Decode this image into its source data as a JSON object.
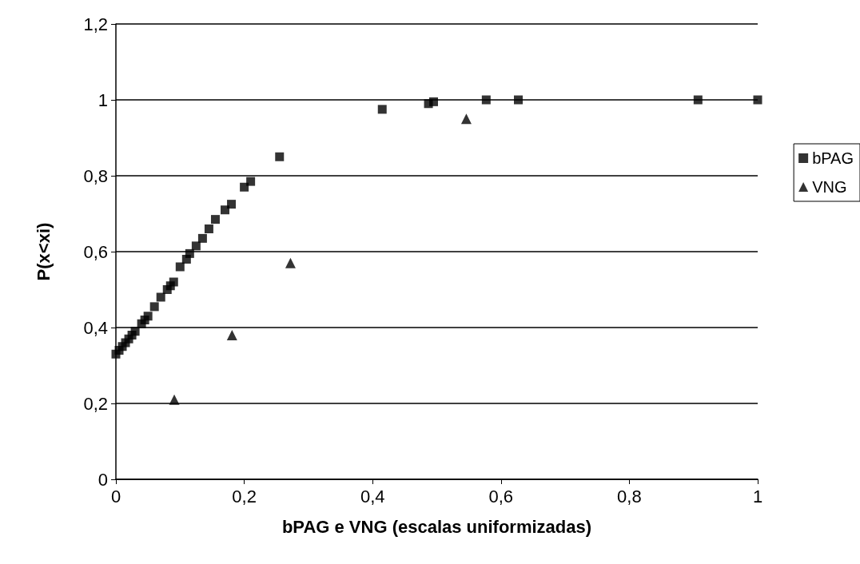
{
  "chart_data": {
    "type": "scatter",
    "xlabel": "bPAG e VNG (escalas uniformizadas)",
    "ylabel": "P(x<xi)",
    "series": [
      {
        "name": "bPAG",
        "color": "#000000",
        "marker": "square",
        "x": [
          0,
          0.005,
          0.01,
          0.015,
          0.02,
          0.025,
          0.03,
          0.04,
          0.045,
          0.05,
          0.06,
          0.07,
          0.08,
          0.085,
          0.09,
          0.1,
          0.11,
          0.115,
          0.125,
          0.135,
          0.145,
          0.155,
          0.17,
          0.18,
          0.2,
          0.21,
          0.255,
          0.415,
          0.487,
          0.495,
          0.577,
          0.627,
          0.907,
          1.0
        ],
        "values": [
          0.33,
          0.34,
          0.35,
          0.36,
          0.37,
          0.38,
          0.39,
          0.41,
          0.42,
          0.43,
          0.455,
          0.48,
          0.5,
          0.51,
          0.52,
          0.56,
          0.58,
          0.595,
          0.615,
          0.635,
          0.66,
          0.685,
          0.71,
          0.725,
          0.77,
          0.785,
          0.85,
          0.975,
          0.99,
          0.995,
          1,
          1,
          1,
          1
        ]
      },
      {
        "name": "VNG",
        "color": "#000000",
        "marker": "triangle",
        "x": [
          0.091,
          0.181,
          0.272,
          0.546
        ],
        "values": [
          0.21,
          0.38,
          0.57,
          0.95
        ]
      }
    ],
    "xlim": [
      0,
      1
    ],
    "xticks": [
      {
        "value": 0,
        "label": "0"
      },
      {
        "value": 0.2,
        "label": "0,2"
      },
      {
        "value": 0.4,
        "label": "0,4"
      },
      {
        "value": 0.6,
        "label": "0,6"
      },
      {
        "value": 0.8,
        "label": "0,8"
      },
      {
        "value": 1,
        "label": "1"
      }
    ],
    "ylim": [
      0,
      1.2
    ],
    "yticks": [
      {
        "value": 0,
        "label": "0"
      },
      {
        "value": 0.2,
        "label": "0,2"
      },
      {
        "value": 0.4,
        "label": "0,4"
      },
      {
        "value": 0.6,
        "label": "0,6"
      },
      {
        "value": 0.8,
        "label": "0,8"
      },
      {
        "value": 1,
        "label": "1"
      },
      {
        "value": 1.2,
        "label": "1,2"
      }
    ],
    "grid": "y",
    "legend": "right"
  }
}
